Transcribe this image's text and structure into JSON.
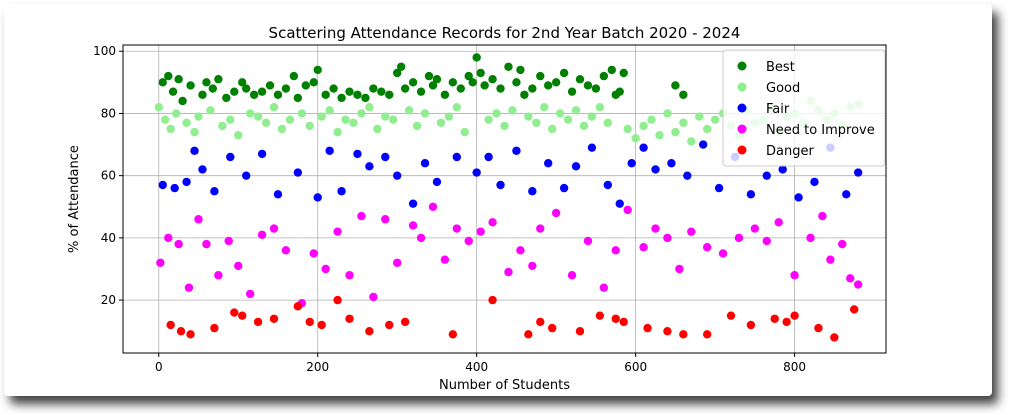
{
  "chart_data": {
    "type": "scatter",
    "title": "Scattering Attendance Records for 2nd Year Batch 2020 - 2024",
    "xlabel": "Number of Students",
    "ylabel": "% of Attendance",
    "xlim": [
      -45,
      915
    ],
    "ylim": [
      3,
      102
    ],
    "xticks": [
      0,
      200,
      400,
      600,
      800
    ],
    "yticks": [
      20,
      40,
      60,
      80,
      100
    ],
    "grid": true,
    "legend_position": "top-right",
    "series": [
      {
        "name": "Best",
        "color": "#008000",
        "x": [
          5,
          12,
          18,
          25,
          30,
          40,
          55,
          60,
          68,
          75,
          85,
          95,
          105,
          110,
          120,
          130,
          140,
          150,
          160,
          170,
          175,
          185,
          195,
          200,
          210,
          220,
          230,
          240,
          250,
          260,
          270,
          280,
          290,
          300,
          305,
          310,
          320,
          330,
          340,
          345,
          350,
          360,
          370,
          380,
          390,
          395,
          400,
          405,
          410,
          420,
          430,
          440,
          450,
          455,
          460,
          470,
          480,
          490,
          500,
          510,
          520,
          530,
          540,
          550,
          560,
          570,
          575,
          580,
          585,
          650,
          660
        ],
        "y": [
          90,
          92,
          87,
          91,
          84,
          89,
          86,
          90,
          88,
          91,
          85,
          87,
          90,
          88,
          86,
          87,
          89,
          86,
          88,
          92,
          85,
          89,
          90,
          94,
          86,
          88,
          85,
          87,
          86,
          85,
          88,
          87,
          86,
          93,
          95,
          88,
          90,
          87,
          92,
          89,
          91,
          86,
          90,
          88,
          92,
          90,
          98,
          93,
          89,
          91,
          88,
          95,
          90,
          94,
          86,
          88,
          92,
          89,
          90,
          93,
          87,
          91,
          89,
          88,
          92,
          94,
          86,
          87,
          93,
          89,
          86
        ]
      },
      {
        "name": "Good",
        "color": "#90EE90",
        "x": [
          0,
          8,
          15,
          22,
          35,
          45,
          50,
          65,
          80,
          90,
          100,
          115,
          125,
          135,
          145,
          155,
          165,
          180,
          190,
          205,
          215,
          225,
          235,
          245,
          255,
          265,
          275,
          285,
          295,
          315,
          325,
          335,
          355,
          365,
          375,
          385,
          415,
          425,
          435,
          445,
          465,
          475,
          485,
          495,
          505,
          515,
          525,
          535,
          545,
          555,
          565,
          590,
          600,
          610,
          620,
          630,
          640,
          650,
          660,
          670,
          680,
          690,
          700,
          710,
          720,
          730,
          740,
          750,
          760,
          770,
          780,
          790,
          800,
          810,
          820,
          830,
          840,
          850,
          860,
          870,
          880
        ],
        "y": [
          82,
          78,
          75,
          80,
          77,
          74,
          79,
          81,
          76,
          78,
          73,
          80,
          79,
          77,
          82,
          75,
          78,
          80,
          76,
          79,
          81,
          74,
          78,
          77,
          80,
          82,
          75,
          79,
          78,
          81,
          76,
          80,
          77,
          79,
          82,
          74,
          78,
          80,
          76,
          81,
          79,
          77,
          82,
          75,
          80,
          78,
          81,
          76,
          79,
          82,
          77,
          75,
          72,
          76,
          78,
          73,
          80,
          74,
          77,
          71,
          79,
          75,
          78,
          80,
          76,
          73,
          81,
          77,
          78,
          82,
          75,
          79,
          80,
          77,
          84,
          81,
          78,
          80,
          76,
          82,
          83
        ]
      },
      {
        "name": "Fair",
        "color": "#0000FF",
        "x": [
          5,
          20,
          35,
          45,
          55,
          70,
          90,
          110,
          130,
          150,
          175,
          200,
          215,
          230,
          250,
          265,
          285,
          300,
          320,
          335,
          350,
          375,
          400,
          415,
          430,
          450,
          470,
          490,
          510,
          525,
          545,
          565,
          580,
          595,
          610,
          625,
          645,
          665,
          685,
          705,
          725,
          745,
          765,
          785,
          805,
          825,
          845,
          865,
          880
        ],
        "y": [
          57,
          56,
          58,
          68,
          62,
          55,
          66,
          60,
          67,
          54,
          61,
          53,
          68,
          55,
          67,
          63,
          66,
          60,
          51,
          64,
          58,
          66,
          61,
          66,
          57,
          68,
          55,
          64,
          56,
          63,
          69,
          57,
          51,
          64,
          69,
          62,
          64,
          60,
          70,
          56,
          66,
          54,
          60,
          62,
          53,
          58,
          69,
          54,
          61
        ]
      },
      {
        "name": "Need to Improve",
        "color": "#FF00FF",
        "x": [
          2,
          12,
          25,
          38,
          50,
          60,
          75,
          88,
          100,
          115,
          130,
          145,
          160,
          180,
          195,
          210,
          225,
          240,
          255,
          270,
          285,
          300,
          320,
          330,
          345,
          360,
          375,
          390,
          405,
          420,
          440,
          455,
          470,
          480,
          500,
          520,
          540,
          560,
          575,
          590,
          610,
          625,
          640,
          655,
          670,
          690,
          710,
          730,
          750,
          765,
          780,
          800,
          820,
          835,
          845,
          860,
          870,
          880
        ],
        "y": [
          32,
          40,
          38,
          24,
          46,
          38,
          28,
          39,
          31,
          22,
          41,
          43,
          36,
          19,
          35,
          30,
          42,
          28,
          47,
          21,
          46,
          32,
          44,
          40,
          50,
          33,
          43,
          39,
          42,
          45,
          29,
          36,
          31,
          43,
          48,
          28,
          39,
          24,
          36,
          49,
          37,
          43,
          40,
          30,
          42,
          37,
          35,
          40,
          43,
          39,
          45,
          28,
          40,
          47,
          33,
          38,
          27,
          25
        ]
      },
      {
        "name": "Danger",
        "color": "#FF0000",
        "x": [
          15,
          28,
          40,
          70,
          95,
          105,
          125,
          145,
          175,
          190,
          205,
          225,
          240,
          265,
          290,
          310,
          370,
          420,
          465,
          480,
          495,
          530,
          555,
          575,
          585,
          615,
          640,
          660,
          690,
          720,
          745,
          775,
          790,
          800,
          830,
          850,
          875
        ],
        "y": [
          12,
          10,
          9,
          11,
          16,
          15,
          13,
          14,
          18,
          13,
          12,
          20,
          14,
          10,
          12,
          13,
          9,
          20,
          9,
          13,
          11,
          10,
          15,
          14,
          13,
          11,
          10,
          9,
          9,
          15,
          12,
          14,
          13,
          15,
          11,
          8,
          17
        ]
      }
    ]
  }
}
